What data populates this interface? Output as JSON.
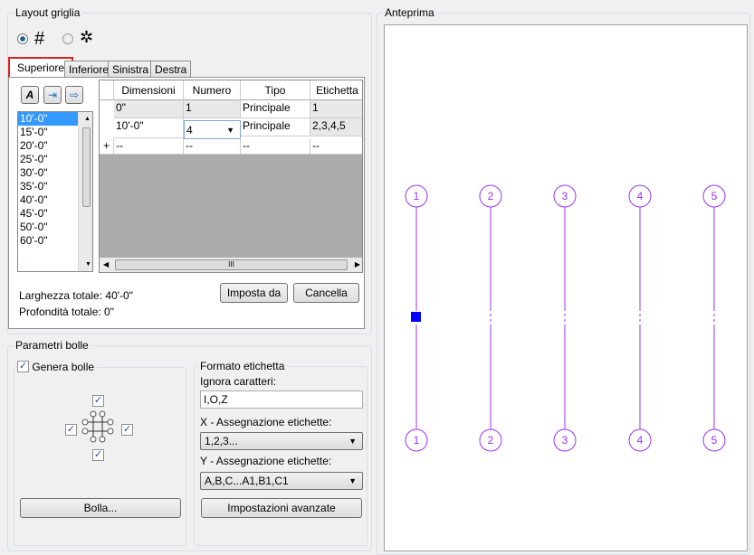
{
  "layout": {
    "title": "Layout griglia",
    "tabs": [
      "Superiore",
      "Inferiore",
      "Sinistra",
      "Destra"
    ],
    "active_tab": "Superiore",
    "list": [
      "10'-0\"",
      "15'-0\"",
      "20'-0\"",
      "25'-0\"",
      "30'-0\"",
      "35'-0\"",
      "40'-0\"",
      "45'-0\"",
      "50'-0\"",
      "60'-0\""
    ],
    "selected": "10'-0\"",
    "columns": [
      "Dimensioni",
      "Numero",
      "Tipo",
      "Etichetta"
    ],
    "rows": [
      [
        "0\"",
        "1",
        "Principale",
        "1"
      ],
      [
        "10'-0\"",
        "4",
        "Principale",
        "2,3,4,5"
      ],
      [
        "--",
        "--",
        "--",
        "--"
      ]
    ],
    "new_row_marker": "+",
    "scroll_grip": "III",
    "total_width": "Larghezza totale: 40'-0\"",
    "total_depth": "Profondità totale: 0\"",
    "set_from": "Imposta da",
    "delete": "Cancella"
  },
  "bubbles": {
    "title": "Parametri bolle",
    "generate": "Genera bolle",
    "generate_checked": true,
    "bubble_button": "Bolla...",
    "format_title": "Formato etichetta",
    "ignore_label": "Ignora caratteri:",
    "ignore_value": "I,O,Z",
    "x_label": "X - Assegnazione etichette:",
    "x_value": "1,2,3...",
    "y_label": "Y - Assegnazione etichette:",
    "y_value": "A,B,C...A1,B1,C1",
    "advanced": "Impostazioni avanzate"
  },
  "preview": {
    "title": "Anteprima",
    "labels": [
      "1",
      "2",
      "3",
      "4",
      "5"
    ],
    "color": "#9b30ff",
    "handle_color": "#0000ff"
  }
}
